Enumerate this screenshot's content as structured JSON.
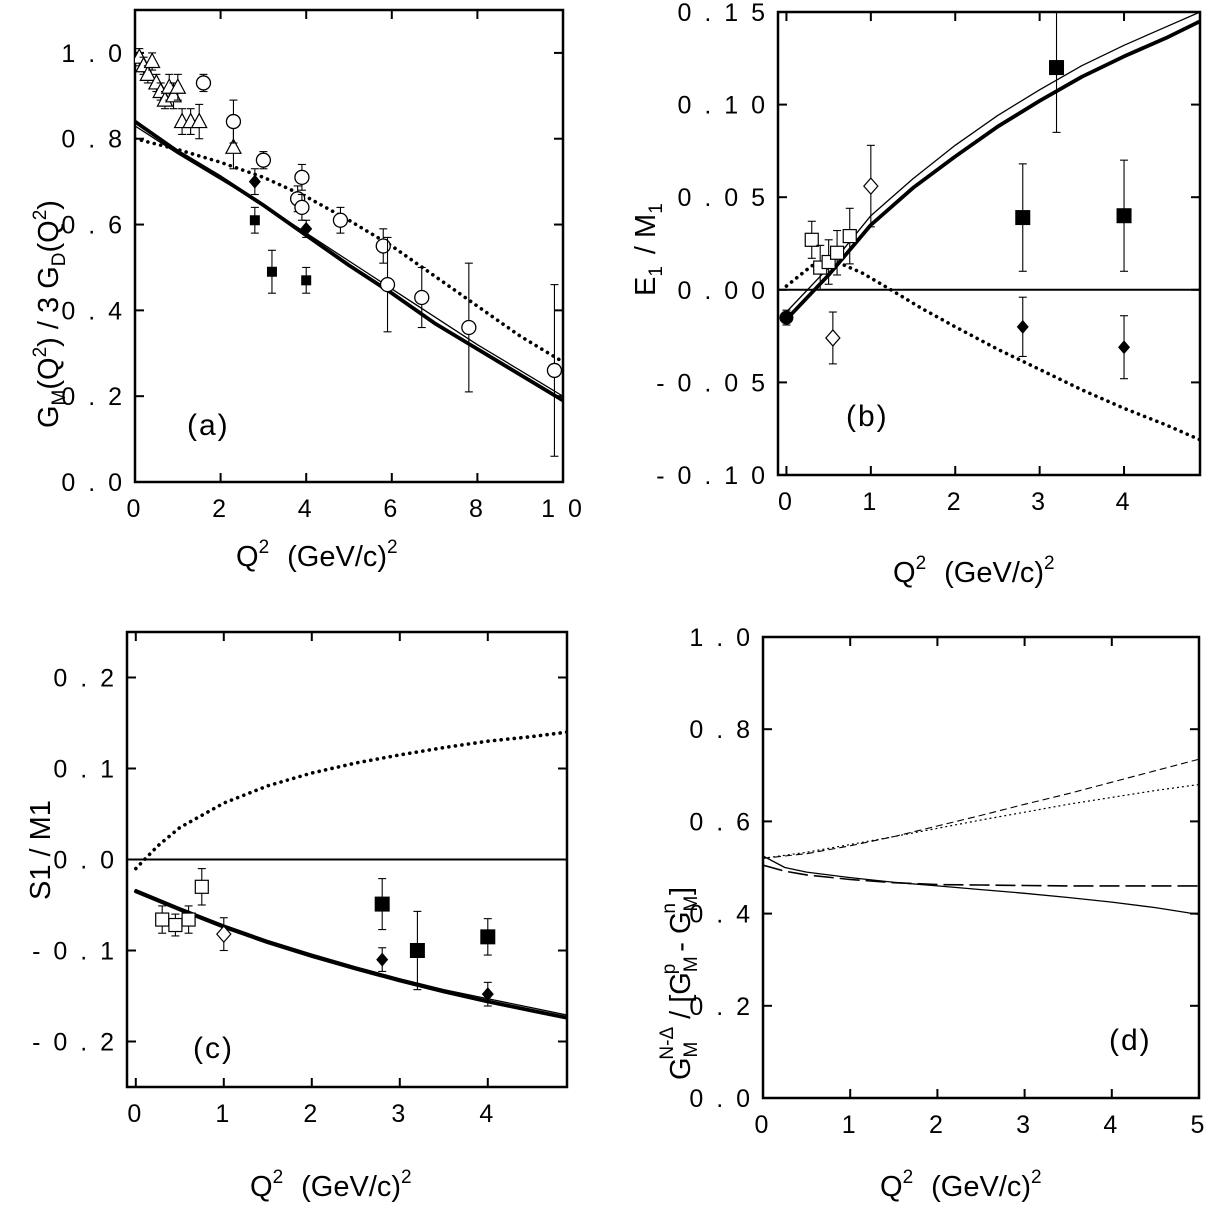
{
  "figure": {
    "text_color": "#000000",
    "background": "#ffffff"
  },
  "chart_data": [
    {
      "type": "scatter",
      "panel_label": "(a)",
      "xlabel": {
        "base": "Q",
        "sup": "2",
        "rest": "(GeV/c)",
        "rest_sup": "2"
      },
      "ylabel": "G_M(Q^2) / 3 G_D(Q^2)",
      "xlim": [
        0,
        10
      ],
      "ylim": [
        0,
        1.1
      ],
      "xticks": [
        0,
        2,
        4,
        6,
        8,
        10
      ],
      "xtick_labels": [
        "0",
        "2",
        "4",
        "6",
        "8",
        "1 0"
      ],
      "yticks": [
        0,
        0.2,
        0.4,
        0.6,
        0.8,
        1.0
      ],
      "ytick_labels": [
        "0 . 0",
        "0 . 2",
        "0 . 4",
        "0 . 6",
        "0 . 8",
        "1 . 0"
      ],
      "zero_line": false,
      "series": [
        {
          "style": "thick",
          "x": [
            0,
            1,
            2,
            3,
            4,
            5,
            6,
            7,
            8,
            9,
            10
          ],
          "y": [
            0.84,
            0.77,
            0.71,
            0.645,
            0.575,
            0.505,
            0.44,
            0.37,
            0.31,
            0.25,
            0.19
          ]
        },
        {
          "style": "thin",
          "x": [
            0,
            1,
            2,
            3,
            4,
            5,
            6,
            7,
            8,
            9,
            10
          ],
          "y": [
            0.83,
            0.765,
            0.705,
            0.645,
            0.58,
            0.515,
            0.45,
            0.385,
            0.32,
            0.26,
            0.2
          ]
        },
        {
          "style": "dotted",
          "x": [
            0,
            1,
            2,
            3,
            4,
            5,
            6,
            7,
            8,
            9,
            10
          ],
          "y": [
            0.8,
            0.775,
            0.745,
            0.71,
            0.665,
            0.61,
            0.55,
            0.48,
            0.41,
            0.34,
            0.28
          ]
        }
      ],
      "points": [
        {
          "marker": "open-triangle",
          "x": 0.1,
          "y": 0.99,
          "err": 0.02
        },
        {
          "marker": "open-triangle",
          "x": 0.2,
          "y": 0.97,
          "err": 0.02
        },
        {
          "marker": "open-triangle",
          "x": 0.3,
          "y": 0.95,
          "err": 0.02
        },
        {
          "marker": "open-triangle",
          "x": 0.4,
          "y": 0.98,
          "err": 0.02
        },
        {
          "marker": "open-triangle",
          "x": 0.5,
          "y": 0.93,
          "err": 0.02
        },
        {
          "marker": "open-triangle",
          "x": 0.6,
          "y": 0.91,
          "err": 0.02
        },
        {
          "marker": "open-triangle",
          "x": 0.7,
          "y": 0.89,
          "err": 0.02
        },
        {
          "marker": "open-triangle",
          "x": 0.8,
          "y": 0.92,
          "err": 0.03
        },
        {
          "marker": "open-triangle",
          "x": 0.9,
          "y": 0.9,
          "err": 0.03
        },
        {
          "marker": "open-triangle",
          "x": 1.0,
          "y": 0.92,
          "err": 0.03
        },
        {
          "marker": "open-triangle",
          "x": 1.1,
          "y": 0.84,
          "err": 0.03
        },
        {
          "marker": "open-triangle",
          "x": 1.3,
          "y": 0.84,
          "err": 0.03
        },
        {
          "marker": "open-triangle",
          "x": 1.5,
          "y": 0.84,
          "err": 0.04
        },
        {
          "marker": "open-triangle",
          "x": 2.3,
          "y": 0.78,
          "err": 0.05
        },
        {
          "marker": "open-circle",
          "x": 1.6,
          "y": 0.93,
          "err": 0.02
        },
        {
          "marker": "open-circle",
          "x": 2.3,
          "y": 0.84,
          "err": 0.05
        },
        {
          "marker": "open-circle",
          "x": 3.0,
          "y": 0.75,
          "err": 0.02
        },
        {
          "marker": "open-circle",
          "x": 3.8,
          "y": 0.66,
          "err": 0.03
        },
        {
          "marker": "open-circle",
          "x": 3.9,
          "y": 0.71,
          "err": 0.03
        },
        {
          "marker": "open-circle",
          "x": 3.9,
          "y": 0.64,
          "err": 0.03
        },
        {
          "marker": "open-circle",
          "x": 4.8,
          "y": 0.61,
          "err": 0.03
        },
        {
          "marker": "open-circle",
          "x": 5.8,
          "y": 0.55,
          "err": 0.04
        },
        {
          "marker": "open-circle",
          "x": 5.9,
          "y": 0.46,
          "err": 0.11
        },
        {
          "marker": "open-circle",
          "x": 6.7,
          "y": 0.43,
          "err": 0.07
        },
        {
          "marker": "open-circle",
          "x": 7.8,
          "y": 0.36,
          "err": 0.15
        },
        {
          "marker": "open-circle",
          "x": 9.8,
          "y": 0.26,
          "err": 0.2
        },
        {
          "marker": "filled-diamond",
          "x": 2.8,
          "y": 0.7,
          "err": 0.03
        },
        {
          "marker": "filled-diamond",
          "x": 4.0,
          "y": 0.59,
          "err": 0.02
        },
        {
          "marker": "filled-square-small",
          "x": 2.8,
          "y": 0.61,
          "err": 0.03
        },
        {
          "marker": "filled-square-small",
          "x": 3.2,
          "y": 0.49,
          "err": 0.05
        },
        {
          "marker": "filled-square-small",
          "x": 4.0,
          "y": 0.47,
          "err": 0.03
        }
      ]
    },
    {
      "type": "scatter",
      "panel_label": "(b)",
      "xlabel": {
        "base": "Q",
        "sup": "2",
        "rest": "(GeV/c)",
        "rest_sup": "2"
      },
      "ylabel": "E_1 / M_1",
      "xlim": [
        -0.1,
        4.9
      ],
      "ylim": [
        -0.1,
        0.15
      ],
      "xticks": [
        0,
        1,
        2,
        3,
        4
      ],
      "xtick_labels": [
        "0",
        "1",
        "2",
        "3",
        "4"
      ],
      "yticks": [
        -0.1,
        -0.05,
        0,
        0.05,
        0.1,
        0.15
      ],
      "ytick_labels": [
        "- 0 . 1 0",
        "- 0 . 0 5",
        "0 . 0 0",
        "0 . 0 5",
        "0 . 1 0",
        "0 . 1 5"
      ],
      "zero_line": true,
      "series": [
        {
          "style": "thick",
          "x": [
            0,
            0.5,
            1,
            1.5,
            2,
            2.5,
            3,
            3.5,
            4,
            4.5,
            4.9
          ],
          "y": [
            -0.016,
            0.008,
            0.035,
            0.055,
            0.072,
            0.088,
            0.102,
            0.115,
            0.126,
            0.136,
            0.145
          ]
        },
        {
          "style": "thin",
          "x": [
            0,
            0.5,
            1,
            1.5,
            2,
            2.5,
            3,
            3.5,
            4,
            4.5,
            4.9
          ],
          "y": [
            -0.012,
            0.012,
            0.04,
            0.06,
            0.078,
            0.094,
            0.108,
            0.121,
            0.132,
            0.142,
            0.15
          ]
        },
        {
          "style": "dotted",
          "x": [
            0,
            0.3,
            0.6,
            0.9,
            1.2,
            1.6,
            2,
            2.5,
            3,
            3.5,
            4,
            4.5,
            4.9
          ],
          "y": [
            0.002,
            0.013,
            0.015,
            0.009,
            0.001,
            -0.01,
            -0.02,
            -0.032,
            -0.043,
            -0.054,
            -0.064,
            -0.073,
            -0.081
          ]
        }
      ],
      "points": [
        {
          "marker": "filled-circle",
          "x": 0.0,
          "y": -0.015,
          "err": 0.004
        },
        {
          "marker": "open-square",
          "x": 0.3,
          "y": 0.027,
          "err": 0.01
        },
        {
          "marker": "open-square",
          "x": 0.4,
          "y": 0.012,
          "err": 0.012
        },
        {
          "marker": "open-square",
          "x": 0.5,
          "y": 0.015,
          "err": 0.012
        },
        {
          "marker": "open-square",
          "x": 0.6,
          "y": 0.02,
          "err": 0.012
        },
        {
          "marker": "open-square",
          "x": 0.75,
          "y": 0.029,
          "err": 0.015
        },
        {
          "marker": "open-diamond",
          "x": 0.55,
          "y": -0.026,
          "err": 0.014
        },
        {
          "marker": "open-diamond",
          "x": 1.0,
          "y": 0.056,
          "err": 0.022
        },
        {
          "marker": "filled-square",
          "x": 2.8,
          "y": 0.039,
          "err": 0.029
        },
        {
          "marker": "filled-square",
          "x": 3.2,
          "y": 0.12,
          "err": 0.035
        },
        {
          "marker": "filled-square",
          "x": 4.0,
          "y": 0.04,
          "err": 0.03
        },
        {
          "marker": "filled-diamond",
          "x": 2.8,
          "y": -0.02,
          "err": 0.016
        },
        {
          "marker": "filled-diamond",
          "x": 4.0,
          "y": -0.031,
          "err": 0.017
        }
      ]
    },
    {
      "type": "scatter",
      "panel_label": "(c)",
      "xlabel": {
        "base": "Q",
        "sup": "2",
        "rest": "(GeV/c)",
        "rest_sup": "2"
      },
      "ylabel": "S1 / M1",
      "xlim": [
        -0.1,
        4.9
      ],
      "ylim": [
        -0.25,
        0.25
      ],
      "xticks": [
        0,
        1,
        2,
        3,
        4
      ],
      "xtick_labels": [
        "0",
        "1",
        "2",
        "3",
        "4"
      ],
      "yticks": [
        -0.2,
        -0.1,
        0,
        0.1,
        0.2
      ],
      "ytick_labels": [
        "- 0 . 2",
        "- 0 . 1",
        "0 . 0",
        "0 . 1",
        "0 . 2"
      ],
      "zero_line": true,
      "series": [
        {
          "style": "thick",
          "x": [
            0,
            0.5,
            1,
            1.5,
            2,
            2.5,
            3,
            3.5,
            4,
            4.5,
            4.9
          ],
          "y": [
            -0.035,
            -0.055,
            -0.074,
            -0.091,
            -0.106,
            -0.12,
            -0.133,
            -0.145,
            -0.156,
            -0.166,
            -0.174
          ]
        },
        {
          "style": "thin",
          "x": [
            0,
            0.5,
            1,
            1.5,
            2,
            2.5,
            3,
            3.5,
            4,
            4.5,
            4.9
          ],
          "y": [
            -0.033,
            -0.053,
            -0.072,
            -0.089,
            -0.104,
            -0.118,
            -0.131,
            -0.143,
            -0.153,
            -0.163,
            -0.171
          ]
        },
        {
          "style": "dotted",
          "x": [
            0,
            0.25,
            0.5,
            1,
            1.5,
            2,
            2.5,
            3,
            3.5,
            4,
            4.5,
            4.9
          ],
          "y": [
            -0.01,
            0.015,
            0.035,
            0.062,
            0.081,
            0.095,
            0.106,
            0.115,
            0.123,
            0.13,
            0.135,
            0.14
          ]
        }
      ],
      "points": [
        {
          "marker": "open-square",
          "x": 0.3,
          "y": -0.066,
          "err": 0.015
        },
        {
          "marker": "open-square",
          "x": 0.45,
          "y": -0.072,
          "err": 0.012
        },
        {
          "marker": "open-square",
          "x": 0.6,
          "y": -0.066,
          "err": 0.015
        },
        {
          "marker": "open-square",
          "x": 0.75,
          "y": -0.03,
          "err": 0.02
        },
        {
          "marker": "open-diamond",
          "x": 1.0,
          "y": -0.082,
          "err": 0.018
        },
        {
          "marker": "filled-square",
          "x": 2.8,
          "y": -0.049,
          "err": 0.028
        },
        {
          "marker": "filled-square",
          "x": 3.2,
          "y": -0.1,
          "err": 0.043
        },
        {
          "marker": "filled-square",
          "x": 4.0,
          "y": -0.085,
          "err": 0.02
        },
        {
          "marker": "filled-diamond",
          "x": 2.8,
          "y": -0.11,
          "err": 0.013
        },
        {
          "marker": "filled-diamond",
          "x": 4.0,
          "y": -0.148,
          "err": 0.013
        }
      ]
    },
    {
      "type": "line",
      "panel_label": "(d)",
      "xlabel": {
        "base": "Q",
        "sup": "2",
        "rest": "(GeV/c)",
        "rest_sup": "2"
      },
      "ylabel": "G_M^{N-Δ} / [G_M^p - G_M^n]",
      "xlim": [
        0,
        5
      ],
      "ylim": [
        0,
        1.0
      ],
      "xticks": [
        0,
        1,
        2,
        3,
        4,
        5
      ],
      "xtick_labels": [
        "0",
        "1",
        "2",
        "3",
        "4",
        "5"
      ],
      "yticks": [
        0,
        0.2,
        0.4,
        0.6,
        0.8,
        1.0
      ],
      "ytick_labels": [
        "0 . 0",
        "0 . 2",
        "0 . 4",
        "0 . 6",
        "0 . 8",
        "1 . 0"
      ],
      "zero_line": false,
      "series": [
        {
          "style": "solid-thin",
          "x": [
            0,
            0.25,
            0.5,
            1,
            1.5,
            2,
            2.5,
            3,
            3.5,
            4,
            4.5,
            5
          ],
          "y": [
            0.525,
            0.5,
            0.49,
            0.478,
            0.468,
            0.46,
            0.452,
            0.444,
            0.435,
            0.425,
            0.413,
            0.398
          ]
        },
        {
          "style": "long-dash",
          "x": [
            0,
            0.25,
            0.5,
            1,
            1.5,
            2,
            2.5,
            3,
            3.5,
            4,
            4.5,
            5
          ],
          "y": [
            0.505,
            0.492,
            0.484,
            0.474,
            0.467,
            0.463,
            0.462,
            0.461,
            0.46,
            0.46,
            0.46,
            0.46
          ]
        },
        {
          "style": "short-dash",
          "x": [
            0,
            0.5,
            1,
            1.5,
            2,
            2.5,
            3,
            3.5,
            4,
            4.5,
            5
          ],
          "y": [
            0.52,
            0.53,
            0.547,
            0.567,
            0.59,
            0.613,
            0.637,
            0.66,
            0.685,
            0.71,
            0.735
          ]
        },
        {
          "style": "fine-dot",
          "x": [
            0,
            0.5,
            1,
            1.5,
            2,
            2.5,
            3,
            3.5,
            4,
            4.5,
            5
          ],
          "y": [
            0.52,
            0.533,
            0.55,
            0.567,
            0.585,
            0.603,
            0.62,
            0.637,
            0.652,
            0.667,
            0.68
          ]
        }
      ],
      "points": []
    }
  ]
}
